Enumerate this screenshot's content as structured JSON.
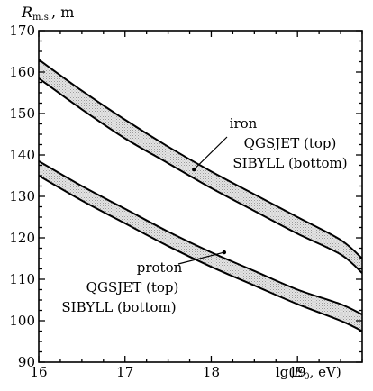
{
  "chart_data": {
    "type": "area",
    "x_axis_label": "lg(E0, eV)",
    "x_axis_label_parts": {
      "lead": "lg(",
      "var": "E",
      "sub": "0",
      "tail": ", eV)"
    },
    "y_axis_label": "R m.s., m",
    "y_axis_label_parts": {
      "var": "R",
      "sub": "m.s.",
      "tail": ", m"
    },
    "xlim": [
      16,
      19.75
    ],
    "ylim": [
      90,
      170
    ],
    "x_ticks": [
      16,
      17,
      18,
      19
    ],
    "y_ticks": [
      90,
      100,
      110,
      120,
      130,
      140,
      150,
      160,
      170
    ],
    "grid": false,
    "bands": [
      {
        "label": "iron",
        "upper": {
          "label": "QGSJET (top)",
          "x": [
            16,
            16.5,
            17,
            17.5,
            18,
            18.5,
            19,
            19.5,
            19.75
          ],
          "y": [
            163,
            155.5,
            148.5,
            142,
            136,
            130.5,
            125,
            119.5,
            115
          ]
        },
        "lower": {
          "label": "SIBYLL (bottom)",
          "x": [
            16,
            16.5,
            17,
            17.5,
            18,
            18.5,
            19,
            19.5,
            19.75
          ],
          "y": [
            158.5,
            151,
            144,
            138,
            132,
            126.5,
            121,
            116,
            111.5
          ]
        }
      },
      {
        "label": "proton",
        "upper": {
          "label": "QGSJET (top)",
          "x": [
            16,
            16.5,
            17,
            17.5,
            18,
            18.5,
            19,
            19.5,
            19.75
          ],
          "y": [
            138.5,
            132.5,
            127,
            121.5,
            116.5,
            112,
            107.5,
            104,
            101.5
          ]
        },
        "lower": {
          "label": "SIBYLL (bottom)",
          "x": [
            16,
            16.5,
            17,
            17.5,
            18,
            18.5,
            19,
            19.5,
            19.75
          ],
          "y": [
            135,
            129,
            123.5,
            118,
            113,
            108.5,
            104,
            100,
            97.5
          ]
        }
      }
    ],
    "annotations": [
      {
        "lines": [
          "iron",
          "QGSJET (top)",
          "SIBYLL (bottom)"
        ],
        "points_to": {
          "x": 17.8,
          "y": 136.5
        }
      },
      {
        "lines": [
          "proton",
          "QGSJET (top)",
          "SIBYLL (bottom)"
        ],
        "points_to": {
          "x": 18.15,
          "y": 116.5
        }
      }
    ]
  }
}
